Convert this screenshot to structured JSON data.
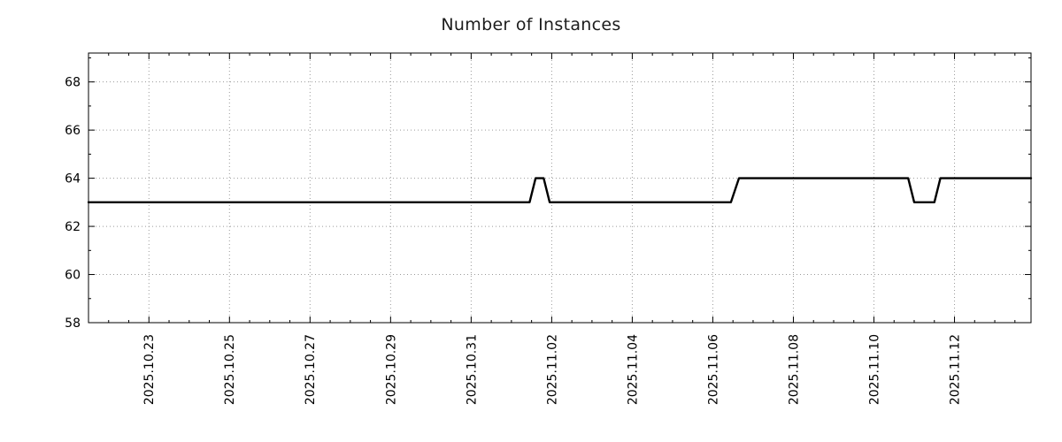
{
  "chart_data": {
    "type": "line",
    "title": "Number of Instances",
    "grid": true,
    "legend": "none",
    "background": "#ffffff",
    "line_color": "#000000",
    "grid_color": "#9a9a9a",
    "x_axis": {
      "label": "",
      "unit": "days since 2025.10.21 12:00",
      "min": 0,
      "max": 23.4,
      "minor_tick_step": 0.5,
      "major_ticks": [
        {
          "pos": 1.5,
          "label": "2025.10.23"
        },
        {
          "pos": 3.5,
          "label": "2025.10.25"
        },
        {
          "pos": 5.5,
          "label": "2025.10.27"
        },
        {
          "pos": 7.5,
          "label": "2025.10.29"
        },
        {
          "pos": 9.5,
          "label": "2025.10.31"
        },
        {
          "pos": 11.5,
          "label": "2025.11.02"
        },
        {
          "pos": 13.5,
          "label": "2025.11.04"
        },
        {
          "pos": 15.5,
          "label": "2025.11.06"
        },
        {
          "pos": 17.5,
          "label": "2025.11.08"
        },
        {
          "pos": 19.5,
          "label": "2025.11.10"
        },
        {
          "pos": 21.5,
          "label": "2025.11.12"
        }
      ]
    },
    "y_axis": {
      "label": "",
      "min": 58,
      "max": 69.2,
      "minor_tick_step": 1,
      "major_ticks": [
        58,
        60,
        62,
        64,
        66,
        68
      ]
    },
    "series": [
      {
        "name": "instances",
        "color": "#000000",
        "points": [
          [
            0,
            63
          ],
          [
            10.95,
            63
          ],
          [
            11.1,
            64
          ],
          [
            11.3,
            64
          ],
          [
            11.45,
            63
          ],
          [
            15.95,
            63
          ],
          [
            16.15,
            64
          ],
          [
            20.35,
            64
          ],
          [
            20.5,
            63
          ],
          [
            21.0,
            63
          ],
          [
            21.15,
            64
          ],
          [
            23.4,
            64
          ]
        ]
      }
    ]
  }
}
